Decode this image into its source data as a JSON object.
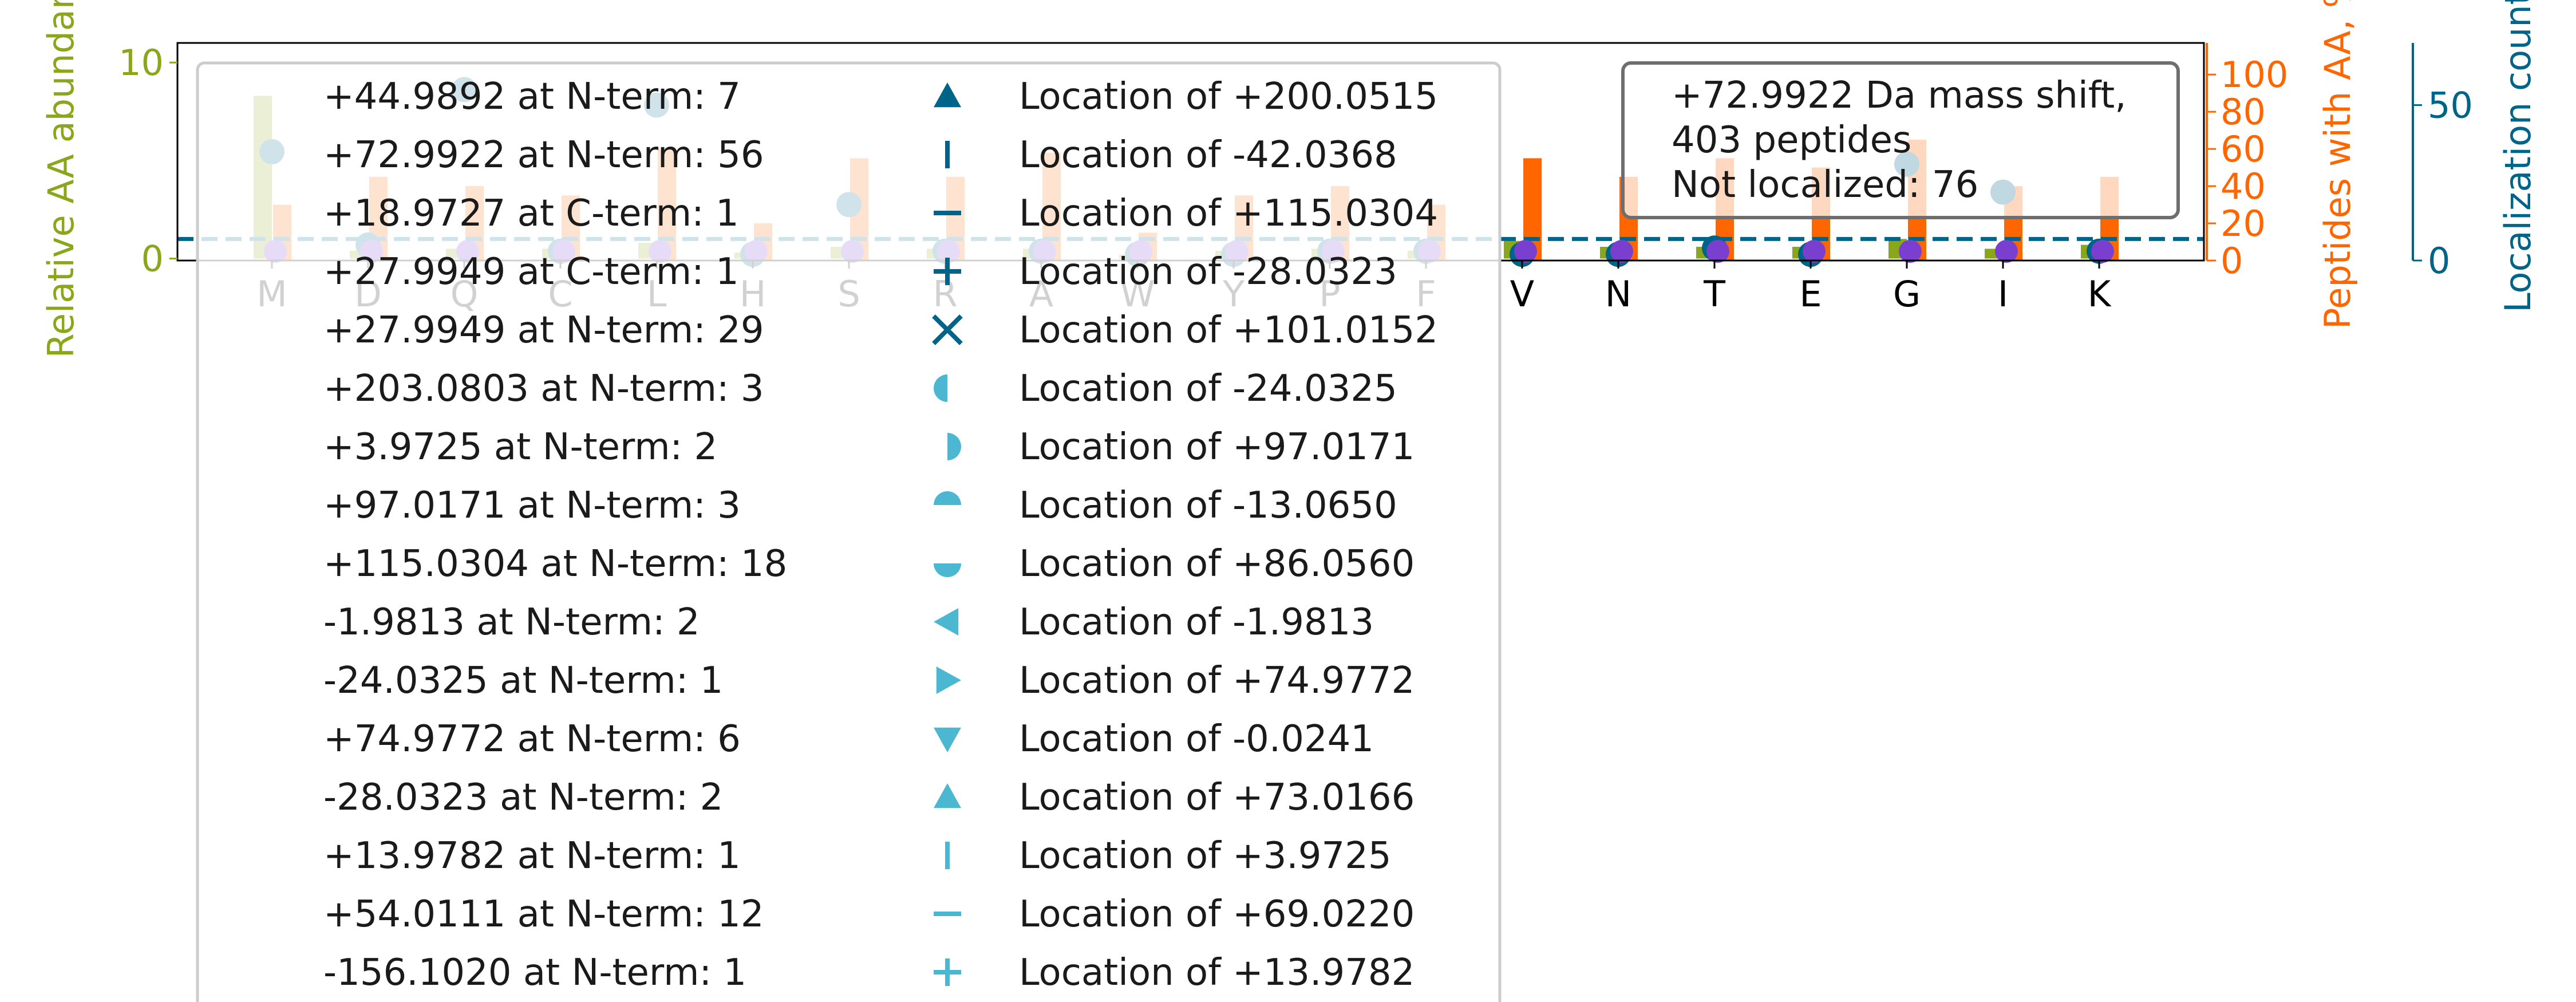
{
  "chart_data": {
    "type": "bar",
    "categories": [
      "M",
      "D",
      "Q",
      "C",
      "L",
      "H",
      "S",
      "R",
      "A",
      "W",
      "Y",
      "P",
      "F",
      "V",
      "N",
      "T",
      "E",
      "G",
      "I",
      "K"
    ],
    "axes": {
      "left": {
        "label": "Relative AA abundance",
        "ticks": [
          0,
          10
        ],
        "ylim": [
          -0.1,
          11
        ],
        "color": "#8aa61a"
      },
      "right_inner": {
        "label": "Peptides with AA, %",
        "ticks": [
          0,
          20,
          40,
          60,
          80,
          100
        ],
        "ylim": [
          0,
          117
        ],
        "color": "#ff6600"
      },
      "right_outer": {
        "label": "Localization count",
        "ticks": [
          0,
          50
        ],
        "ylim": [
          0,
          70
        ],
        "color": "#006489"
      }
    },
    "series": [
      {
        "name": "",
        "axis": "left",
        "color": "#8aa61a",
        "values": [
          8.3,
          0.4,
          0.5,
          0.5,
          0.8,
          0.3,
          0.6,
          0.5,
          0.5,
          0.2,
          0.4,
          0.5,
          0.4,
          0.9,
          0.6,
          0.6,
          0.6,
          1.0,
          0.5,
          0.7
        ]
      },
      {
        "name": "",
        "axis": "right_inner",
        "color": "#ff6600",
        "values": [
          30,
          45,
          40,
          35,
          60,
          20,
          55,
          45,
          58,
          15,
          35,
          40,
          30,
          55,
          45,
          55,
          50,
          65,
          40,
          45
        ]
      },
      {
        "name": "",
        "axis": "right_outer",
        "type": "scatter",
        "color": "#006489",
        "values": [
          35,
          5,
          55,
          3,
          50,
          2,
          18,
          3,
          3,
          2,
          2,
          3,
          3,
          2,
          2,
          4,
          2,
          31,
          22,
          3
        ]
      }
    ],
    "hline": {
      "axis": "left",
      "value": 1,
      "style": "dashed",
      "color": "#006489"
    },
    "legend": {
      "placement": "upper-left",
      "col1": [
        "+44.9892 at N-term: 7",
        "+72.9922 at N-term: 56",
        "+18.9727 at C-term: 1",
        "+27.9949 at C-term: 1",
        "+27.9949 at N-term: 29",
        "+203.0803 at N-term: 3",
        "+3.9725 at N-term: 2",
        "+97.0171 at N-term: 3",
        "+115.0304 at N-term: 18",
        "-1.9813 at N-term: 2",
        "-24.0325 at N-term: 1",
        "+74.9772 at N-term: 6",
        "-28.0323 at N-term: 2",
        "+13.9782 at N-term: 1",
        "+54.0111 at N-term: 12",
        "-156.1020 at N-term: 1"
      ],
      "col2": [
        {
          "label": "Location of +200.0515",
          "marker": "triangle-up",
          "color": "#006489"
        },
        {
          "label": "Location of -42.0368",
          "marker": "vline",
          "color": "#006489"
        },
        {
          "label": "Location of +115.0304",
          "marker": "hline",
          "color": "#006489"
        },
        {
          "label": "Location of -28.0323",
          "marker": "plus",
          "color": "#006489"
        },
        {
          "label": "Location of +101.0152",
          "marker": "x",
          "color": "#006489"
        },
        {
          "label": "Location of -24.0325",
          "marker": "half-left",
          "color": "#4bb7d1"
        },
        {
          "label": "Location of +97.0171",
          "marker": "half-right",
          "color": "#4bb7d1"
        },
        {
          "label": "Location of -13.0650",
          "marker": "half-top",
          "color": "#4bb7d1"
        },
        {
          "label": "Location of +86.0560",
          "marker": "half-bottom",
          "color": "#4bb7d1"
        },
        {
          "label": "Location of -1.9813",
          "marker": "triangle-left",
          "color": "#4bb7d1"
        },
        {
          "label": "Location of +74.9772",
          "marker": "triangle-right",
          "color": "#4bb7d1"
        },
        {
          "label": "Location of -0.0241",
          "marker": "triangle-down",
          "color": "#4bb7d1"
        },
        {
          "label": "Location of +73.0166",
          "marker": "triangle-up",
          "color": "#4bb7d1"
        },
        {
          "label": "Location of +3.9725",
          "marker": "vline",
          "color": "#4bb7d1"
        },
        {
          "label": "Location of +69.0220",
          "marker": "hline",
          "color": "#4bb7d1"
        },
        {
          "label": "Location of +13.9782",
          "marker": "plus",
          "color": "#4bb7d1"
        }
      ]
    },
    "annotation": {
      "lines": [
        "+72.9922 Da mass shift,",
        "403 peptides",
        "Not localized: 76"
      ]
    }
  }
}
